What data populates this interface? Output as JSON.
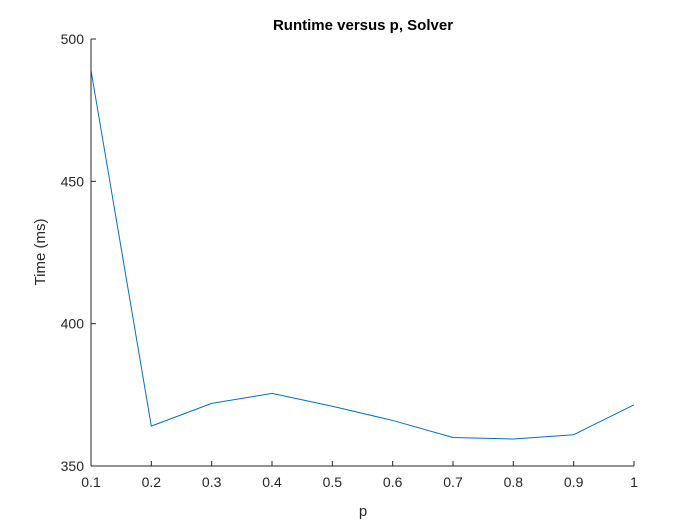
{
  "chart_data": {
    "type": "line",
    "title": "Runtime versus p, Solver",
    "xlabel": "p",
    "ylabel": "Time (ms)",
    "xlim": [
      0.1,
      1
    ],
    "ylim": [
      350,
      500
    ],
    "x_ticks": [
      0.1,
      0.2,
      0.3,
      0.4,
      0.5,
      0.6,
      0.7,
      0.8,
      0.9,
      1
    ],
    "x_tick_labels": [
      "0.1",
      "0.2",
      "0.3",
      "0.4",
      "0.5",
      "0.6",
      "0.7",
      "0.8",
      "0.9",
      "1"
    ],
    "y_ticks": [
      350,
      400,
      450,
      500
    ],
    "y_tick_labels": [
      "350",
      "400",
      "450",
      "500"
    ],
    "grid": false,
    "legend": "none",
    "line_color": "#0072BD",
    "series": [
      {
        "x": [
          0.1,
          0.2,
          0.3,
          0.4,
          0.5,
          0.6,
          0.7,
          0.8,
          0.9,
          1.0
        ],
        "values": [
          489,
          364,
          372,
          375.5,
          371,
          366,
          360,
          359.5,
          361,
          371.5
        ]
      }
    ]
  }
}
